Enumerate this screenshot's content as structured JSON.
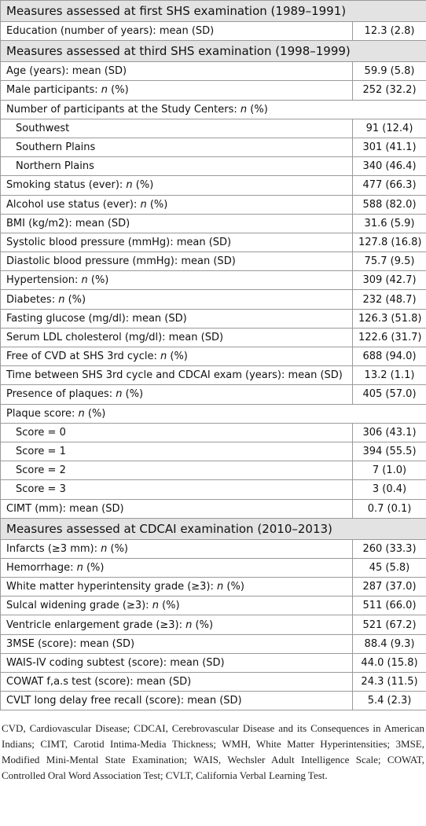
{
  "sections": [
    {
      "title": "Measures assessed at first SHS examination (1989–1991)",
      "rows": [
        {
          "label": "Education (number of years): mean (SD)",
          "value": "12.3 (2.8)"
        }
      ]
    },
    {
      "title": "Measures assessed at third SHS examination (1998–1999)",
      "rows": [
        {
          "label": "Age (years): mean (SD)",
          "value": "59.9 (5.8)"
        },
        {
          "label": "Male participants: n (%)",
          "value": "252 (32.2)"
        },
        {
          "label": "Number of participants at the Study Centers: n (%)",
          "value": "",
          "full": true
        },
        {
          "label": "Southwest",
          "value": "91 (12.4)",
          "indent": true
        },
        {
          "label": "Southern Plains",
          "value": "301 (41.1)",
          "indent": true
        },
        {
          "label": "Northern Plains",
          "value": "340 (46.4)",
          "indent": true
        },
        {
          "label": "Smoking status (ever): n (%)",
          "value": "477 (66.3)"
        },
        {
          "label": "Alcohol use status (ever): n (%)",
          "value": "588 (82.0)"
        },
        {
          "label": "BMI (kg/m2): mean (SD)",
          "value": "31.6 (5.9)"
        },
        {
          "label": "Systolic blood pressure (mmHg): mean (SD)",
          "value": "127.8 (16.8)"
        },
        {
          "label": "Diastolic blood pressure (mmHg): mean (SD)",
          "value": "75.7 (9.5)"
        },
        {
          "label": "Hypertension: n (%)",
          "value": "309 (42.7)"
        },
        {
          "label": "Diabetes: n (%)",
          "value": "232 (48.7)"
        },
        {
          "label": "Fasting glucose (mg/dl): mean (SD)",
          "value": "126.3 (51.8)"
        },
        {
          "label": "Serum LDL cholesterol (mg/dl): mean (SD)",
          "value": "122.6 (31.7)"
        },
        {
          "label": "Free of CVD at SHS 3rd cycle: n (%)",
          "value": "688 (94.0)"
        },
        {
          "label": "Time between SHS 3rd cycle and CDCAI exam (years): mean (SD)",
          "value": "13.2 (1.1)"
        },
        {
          "label": "Presence of plaques: n (%)",
          "value": "405 (57.0)"
        },
        {
          "label": "Plaque score: n (%)",
          "value": "",
          "full": true
        },
        {
          "label": "Score = 0",
          "value": "306 (43.1)",
          "indent": true
        },
        {
          "label": "Score = 1",
          "value": "394 (55.5)",
          "indent": true
        },
        {
          "label": "Score = 2",
          "value": "7 (1.0)",
          "indent": true
        },
        {
          "label": "Score = 3",
          "value": "3 (0.4)",
          "indent": true
        },
        {
          "label": "CIMT (mm): mean (SD)",
          "value": "0.7 (0.1)"
        }
      ]
    },
    {
      "title": "Measures assessed at CDCAI examination (2010–2013)",
      "rows": [
        {
          "label": "Infarcts (≥3 mm): n (%)",
          "value": "260 (33.3)"
        },
        {
          "label": "Hemorrhage: n (%)",
          "value": "45 (5.8)"
        },
        {
          "label": "White matter hyperintensity grade (≥3): n (%)",
          "value": "287 (37.0)"
        },
        {
          "label": "Sulcal widening grade (≥3): n (%)",
          "value": "511 (66.0)"
        },
        {
          "label": "Ventricle enlargement grade (≥3): n (%)",
          "value": "521 (67.2)"
        },
        {
          "label": "3MSE (score): mean (SD)",
          "value": "88.4 (9.3)"
        },
        {
          "label": "WAIS-IV coding subtest (score): mean (SD)",
          "value": "44.0 (15.8)"
        },
        {
          "label": "COWAT f,a.s test (score): mean (SD)",
          "value": "24.3 (11.5)"
        },
        {
          "label": "CVLT long delay free recall (score): mean (SD)",
          "value": "5.4 (2.3)"
        }
      ]
    }
  ],
  "footnote": "CVD, Cardiovascular Disease; CDCAI, Cerebrovascular Disease and its Consequences in American Indians; CIMT, Carotid Intima-Media Thickness; WMH, White Matter Hyperintensities; 3MSE, Modified Mini-Mental State Examination; WAIS, Wechsler Adult Intelligence Scale; COWAT, Controlled Oral Word Association Test; CVLT, California Verbal Learning Test."
}
